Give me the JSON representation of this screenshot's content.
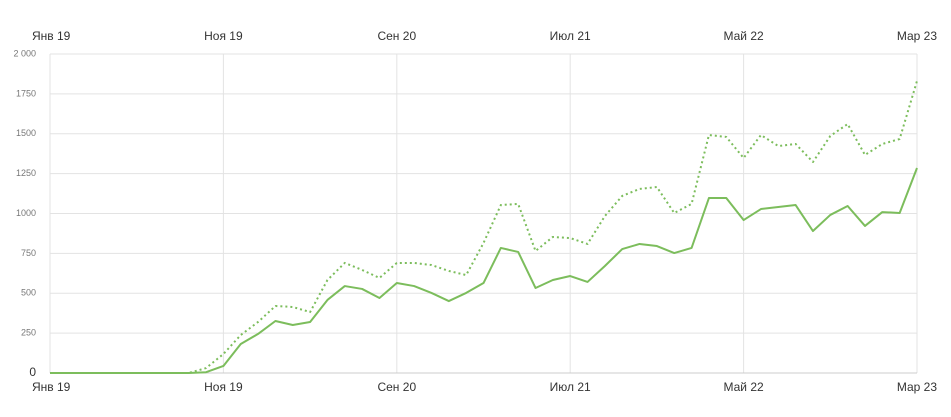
{
  "chart_data": {
    "type": "line",
    "categories": [
      "Янв 19",
      null,
      null,
      null,
      null,
      null,
      null,
      null,
      null,
      null,
      "Ноя 19",
      null,
      null,
      null,
      null,
      null,
      null,
      null,
      null,
      null,
      "Сен 20",
      null,
      null,
      null,
      null,
      null,
      null,
      null,
      null,
      null,
      "Июл 21",
      null,
      null,
      null,
      null,
      null,
      null,
      null,
      null,
      null,
      "Май 22",
      null,
      null,
      null,
      null,
      null,
      null,
      null,
      null,
      null,
      "Мар 23"
    ],
    "series": [
      {
        "color": "#7cbd5c",
        "style": "solid",
        "values": [
          0,
          0,
          0,
          0,
          0,
          0,
          0,
          0,
          0,
          5,
          44,
          182,
          245,
          326,
          301,
          320,
          458,
          545,
          527,
          470,
          564,
          545,
          502,
          451,
          502,
          564,
          784,
          759,
          533,
          583,
          608,
          571,
          671,
          777,
          809,
          796,
          752,
          784,
          1097,
          1097,
          959,
          1028,
          1041,
          1053,
          890,
          991,
          1047,
          922,
          1009,
          1003,
          1285
        ]
      },
      {
        "color": "#7cbd5c",
        "style": "dotted",
        "values": [
          0,
          0,
          0,
          0,
          0,
          0,
          0,
          0,
          0,
          31,
          119,
          238,
          320,
          420,
          414,
          382,
          583,
          690,
          646,
          596,
          690,
          690,
          677,
          640,
          614,
          815,
          1053,
          1060,
          765,
          853,
          846,
          809,
          984,
          1110,
          1154,
          1166,
          1003,
          1060,
          1492,
          1480,
          1348,
          1492,
          1423,
          1436,
          1323,
          1486,
          1561,
          1367,
          1436,
          1467,
          1831
        ]
      }
    ],
    "ylim": [
      0,
      2000
    ],
    "yticks": [
      0,
      250,
      500,
      750,
      1000,
      1250,
      1500,
      1750,
      {
        "value": 2000,
        "label": "2 000"
      }
    ],
    "grid": true
  }
}
